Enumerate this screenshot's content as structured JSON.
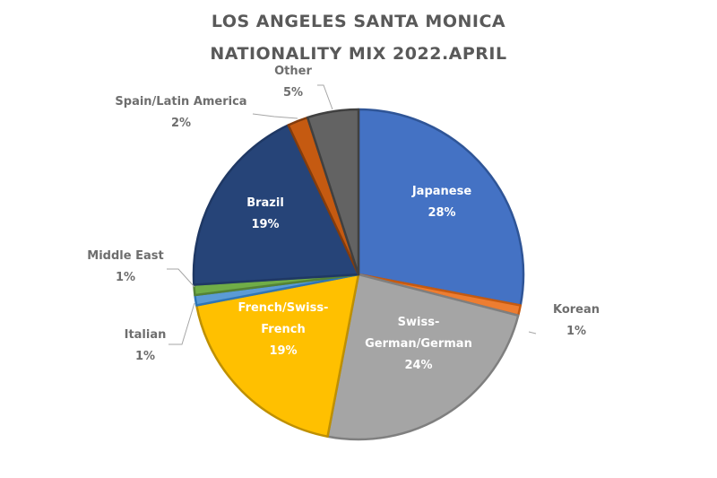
{
  "chart_data": {
    "type": "pie",
    "title_lines": [
      "LOS ANGELES SANTA MONICA",
      "NATIONALITY MIX 2022.APRIL"
    ],
    "slices": [
      {
        "name": "Japanese",
        "label_lines": [
          "Japanese"
        ],
        "value": 28,
        "value_label": "28%",
        "color": "#4472C4",
        "edge": "#2F5597",
        "label_pos": "inside"
      },
      {
        "name": "Korean",
        "label_lines": [
          "Korean"
        ],
        "value": 1,
        "value_label": "1%",
        "color": "#ED7D31",
        "edge": "#C55A11",
        "label_pos": "outside-right"
      },
      {
        "name": "Swiss-German/German",
        "label_lines": [
          "Swiss-",
          "German/German"
        ],
        "value": 24,
        "value_label": "24%",
        "color": "#A5A5A5",
        "edge": "#7F7F7F",
        "label_pos": "inside"
      },
      {
        "name": "French/Swiss-French",
        "label_lines": [
          "French/Swiss-",
          "French"
        ],
        "value": 19,
        "value_label": "19%",
        "color": "#FFC000",
        "edge": "#BF9000",
        "label_pos": "inside"
      },
      {
        "name": "Italian",
        "label_lines": [
          "Italian"
        ],
        "value": 1,
        "value_label": "1%",
        "color": "#5B9BD5",
        "edge": "#2E75B6",
        "label_pos": "outside-left"
      },
      {
        "name": "Middle East",
        "label_lines": [
          "Middle East"
        ],
        "value": 1,
        "value_label": "1%",
        "color": "#70AD47",
        "edge": "#548235",
        "label_pos": "outside-left"
      },
      {
        "name": "Brazil",
        "label_lines": [
          "Brazil"
        ],
        "value": 19,
        "value_label": "19%",
        "color": "#264478",
        "edge": "#1F3864",
        "label_pos": "inside"
      },
      {
        "name": "Spain/Latin America",
        "label_lines": [
          "Spain/Latin America"
        ],
        "value": 2,
        "value_label": "2%",
        "color": "#C55A11",
        "edge": "#843C0C",
        "label_pos": "outside-left"
      },
      {
        "name": "Other",
        "label_lines": [
          "Other"
        ],
        "value": 5,
        "value_label": "5%",
        "color": "#636363",
        "edge": "#404040",
        "label_pos": "outside-top"
      }
    ],
    "start": "12 o'clock",
    "direction": "clockwise",
    "legend": "none"
  }
}
